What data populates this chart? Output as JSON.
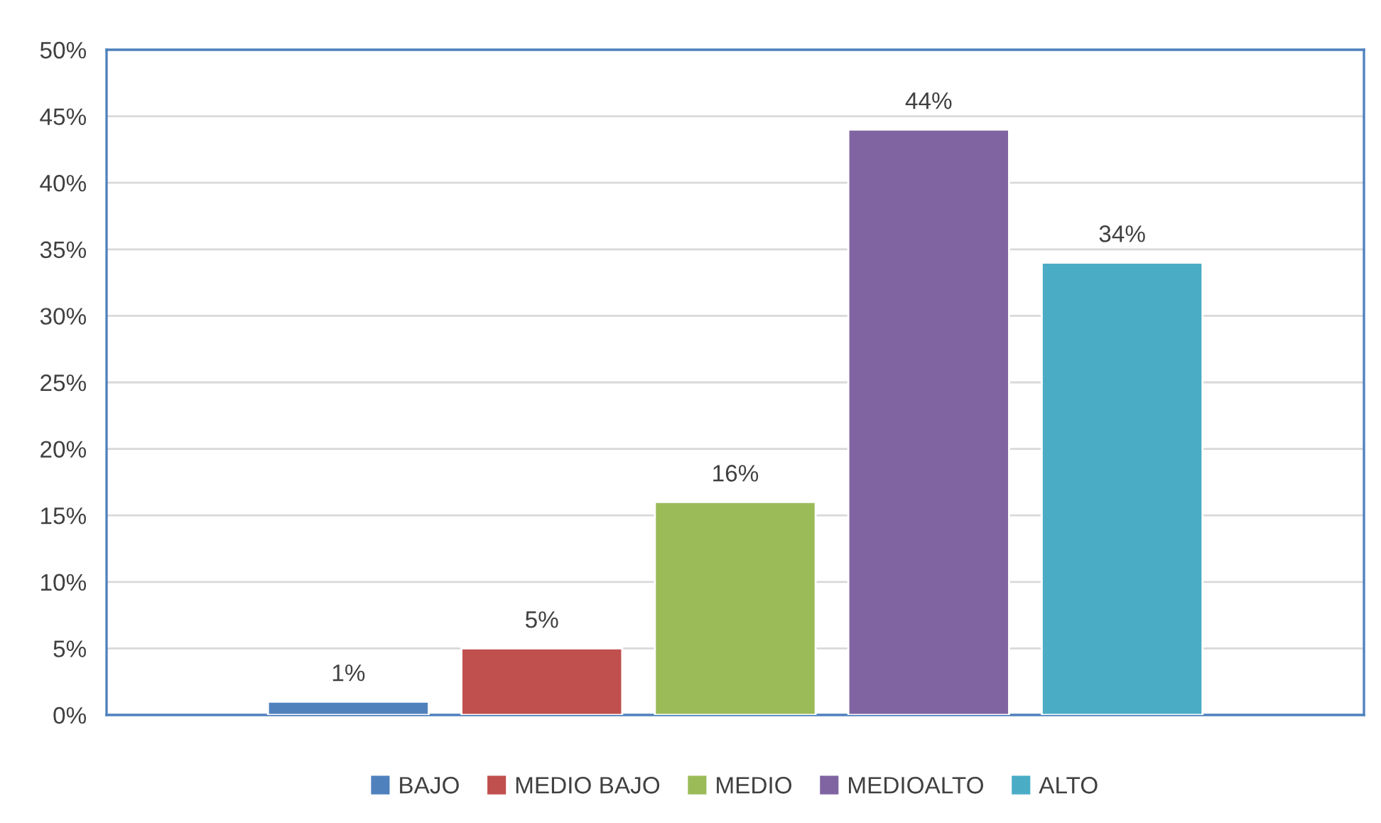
{
  "chart_data": {
    "type": "bar",
    "categories": [
      null
    ],
    "series": [
      {
        "name": "BAJO",
        "color": "#4f81bd",
        "values": [
          1
        ],
        "value_labels": [
          "1%"
        ]
      },
      {
        "name": "MEDIO BAJO",
        "color": "#c0504d",
        "values": [
          5
        ],
        "value_labels": [
          "5%"
        ]
      },
      {
        "name": "MEDIO",
        "color": "#9bbb59",
        "values": [
          16
        ],
        "value_labels": [
          "16%"
        ]
      },
      {
        "name": "MEDIOALTO",
        "color": "#8064a2",
        "values": [
          44
        ],
        "value_labels": [
          "44%"
        ]
      },
      {
        "name": "ALTO",
        "color": "#4bacc6",
        "values": [
          34
        ],
        "value_labels": [
          "34%"
        ]
      }
    ],
    "ylim": [
      0,
      50
    ],
    "yticks": [
      {
        "value": 0,
        "label": "0%"
      },
      {
        "value": 5,
        "label": "5%"
      },
      {
        "value": 10,
        "label": "10%"
      },
      {
        "value": 15,
        "label": "15%"
      },
      {
        "value": 20,
        "label": "20%"
      },
      {
        "value": 25,
        "label": "25%"
      },
      {
        "value": 30,
        "label": "30%"
      },
      {
        "value": 35,
        "label": "35%"
      },
      {
        "value": 40,
        "label": "40%"
      },
      {
        "value": 45,
        "label": "45%"
      },
      {
        "value": 50,
        "label": "50%"
      }
    ],
    "grid": "y",
    "legend": "bottom"
  }
}
